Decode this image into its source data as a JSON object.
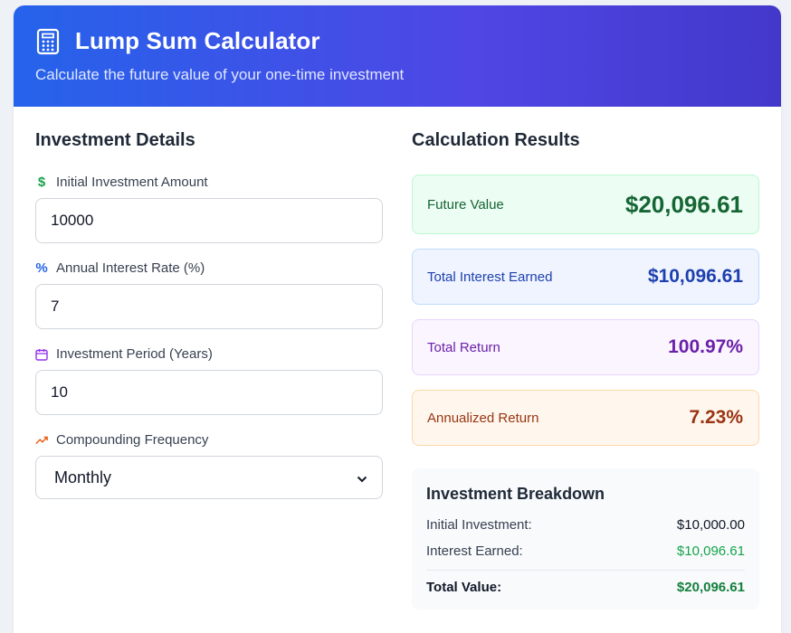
{
  "header": {
    "title": "Lump Sum Calculator",
    "subtitle": "Calculate the future value of your one-time investment",
    "icon": "calculator-icon"
  },
  "form": {
    "section_title": "Investment Details",
    "initial_amount": {
      "label": "Initial Investment Amount",
      "value": "10000",
      "icon": "dollar-icon"
    },
    "interest_rate": {
      "label": "Annual Interest Rate (%)",
      "value": "7",
      "icon": "percent-icon"
    },
    "period": {
      "label": "Investment Period (Years)",
      "value": "10",
      "icon": "calendar-icon"
    },
    "frequency": {
      "label": "Compounding Frequency",
      "selected": "Monthly",
      "icon": "trending-up-icon"
    }
  },
  "results": {
    "section_title": "Calculation Results",
    "future_value": {
      "label": "Future Value",
      "value": "$20,096.61"
    },
    "total_interest": {
      "label": "Total Interest Earned",
      "value": "$10,096.61"
    },
    "total_return": {
      "label": "Total Return",
      "value": "100.97%"
    },
    "annualized_return": {
      "label": "Annualized Return",
      "value": "7.23%"
    }
  },
  "breakdown": {
    "title": "Investment Breakdown",
    "initial": {
      "label": "Initial Investment:",
      "value": "$10,000.00"
    },
    "interest": {
      "label": "Interest Earned:",
      "value": "$10,096.61"
    },
    "total": {
      "label": "Total Value:",
      "value": "$20,096.61"
    }
  },
  "colors": {
    "header_gradient_start": "#2563eb",
    "header_gradient_end": "#4338ca",
    "green": "#166534",
    "blue": "#1e40af",
    "purple": "#6b21a8",
    "orange": "#9a3412"
  }
}
